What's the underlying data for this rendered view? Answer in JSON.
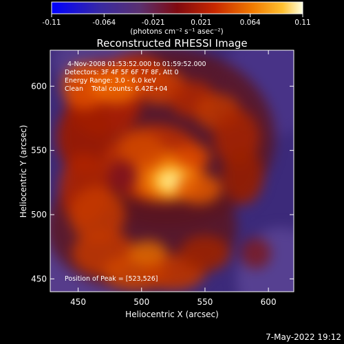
{
  "chart_data": {
    "type": "heatmap",
    "title": "Reconstructed RHESSI Image",
    "xlabel": "Heliocentric X (arcsec)",
    "ylabel": "Heliocentric Y (arcsec)",
    "xlim": [
      428,
      620
    ],
    "ylim": [
      440,
      628
    ],
    "x_ticks": [
      450,
      500,
      550,
      600
    ],
    "y_ticks": [
      450,
      500,
      550,
      600
    ],
    "colorbar": {
      "min": -0.11,
      "max": 0.11,
      "ticks": [
        "-0.11",
        "-0.064",
        "-0.021",
        "0.021",
        "0.064",
        "0.11"
      ],
      "unit_label": "(photons cm⁻² s⁻¹ asec⁻²)",
      "colors": [
        "#0000ff",
        "#3a2aa0",
        "#5a3070",
        "#800a10",
        "#c82800",
        "#f07a00",
        "#ffc030",
        "#ffffe0"
      ]
    },
    "annotations": {
      "time_range": "4-Nov-2008 01:53:52.000 to 01:59:52.000",
      "detectors": "Detectors: 3F 4F 5F 6F 7F 8F, Att 0",
      "energy": "Energy Range: 3.0 - 6.0 keV",
      "clean": "Clean    Total counts: 6.42E+04",
      "peak": "Position of Peak = [523,526]"
    },
    "peak": [
      523,
      526
    ],
    "footer_date": "7-May-2022 19:12"
  }
}
